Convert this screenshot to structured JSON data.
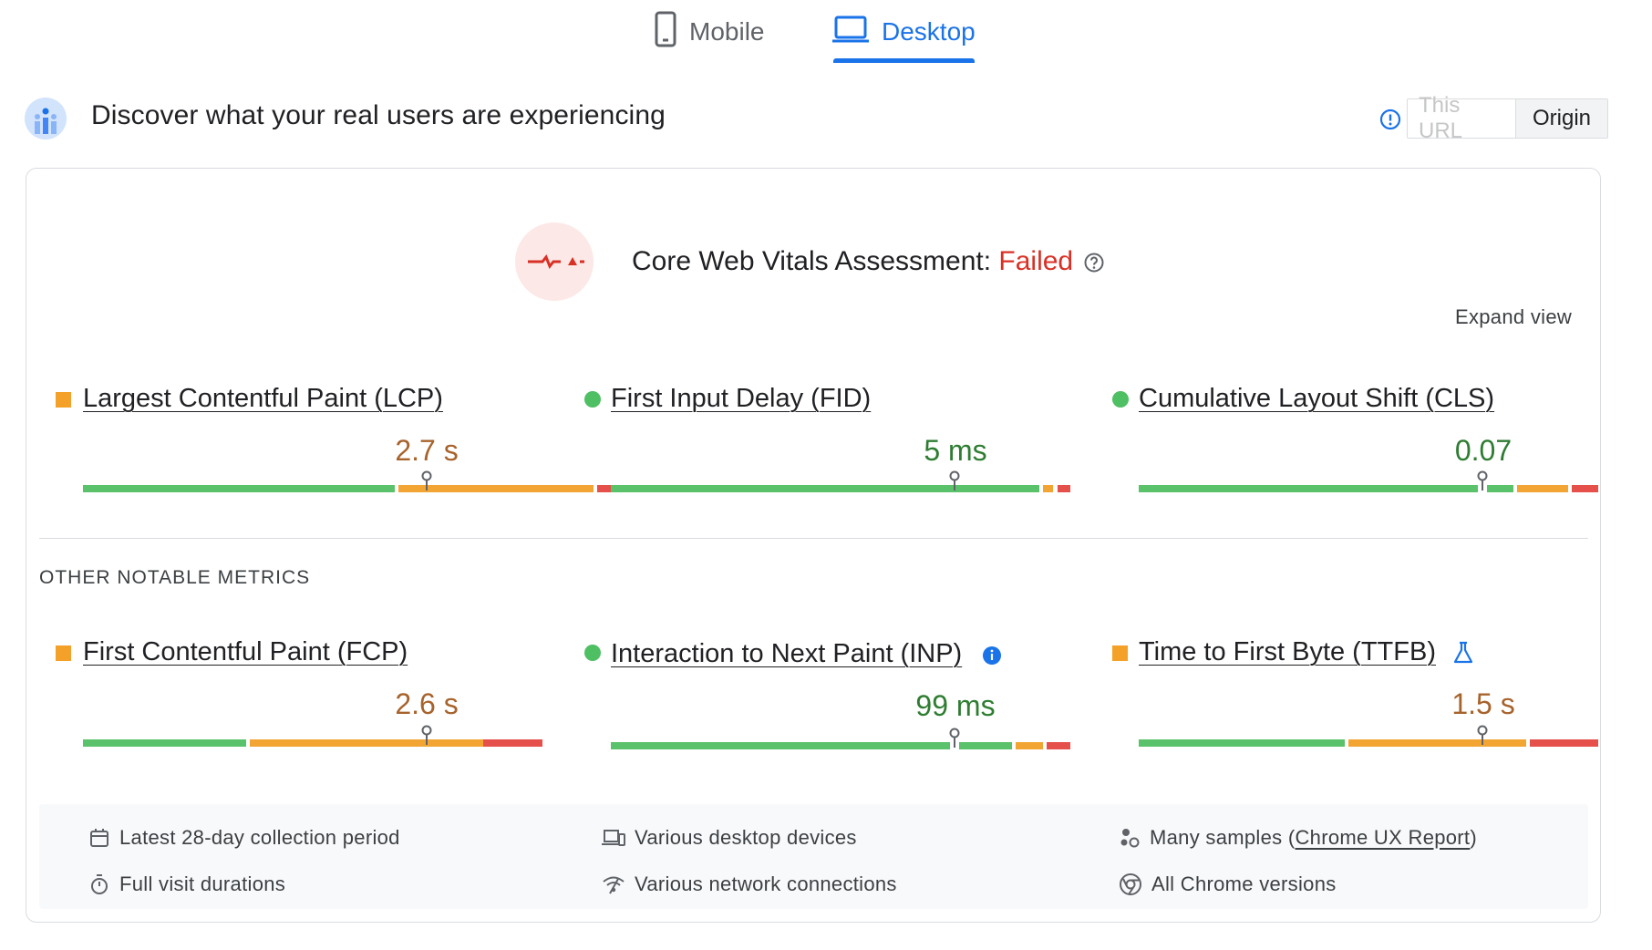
{
  "tabs": {
    "mobile_label": "Mobile",
    "desktop_label": "Desktop",
    "active": "Desktop"
  },
  "header": {
    "title": "Discover what your real users are experiencing",
    "toggle": {
      "this_url": "This URL",
      "origin": "Origin",
      "selected": "Origin"
    }
  },
  "assessment": {
    "label": "Core Web Vitals Assessment:",
    "status": "Failed",
    "expand_label": "Expand view"
  },
  "core_metrics": [
    {
      "name": "Largest Contentful Paint (LCP)",
      "value": "2.7 s",
      "rating": "needs-improvement"
    },
    {
      "name": "First Input Delay (FID)",
      "value": "5 ms",
      "rating": "good"
    },
    {
      "name": "Cumulative Layout Shift (CLS)",
      "value": "0.07",
      "rating": "good"
    }
  ],
  "other_section_label": "OTHER NOTABLE METRICS",
  "other_metrics": [
    {
      "name": "First Contentful Paint (FCP)",
      "value": "2.6 s",
      "rating": "needs-improvement"
    },
    {
      "name": "Interaction to Next Paint (INP)",
      "value": "99 ms",
      "rating": "good",
      "badge": "info-icon"
    },
    {
      "name": "Time to First Byte (TTFB)",
      "value": "1.5 s",
      "rating": "needs-improvement",
      "badge": "flask-icon"
    }
  ],
  "footer": {
    "collection_period": "Latest 28-day collection period",
    "visit_durations": "Full visit durations",
    "devices": "Various desktop devices",
    "network": "Various network connections",
    "samples_prefix": "Many samples (",
    "samples_link": "Chrome UX Report",
    "samples_suffix": ")",
    "chrome_versions": "All Chrome versions"
  },
  "colors": {
    "accent": "#1a73e8",
    "fail": "#d93025",
    "good": "#5ac26a",
    "needs_improvement": "#f2a533",
    "poor": "#e5504a"
  }
}
